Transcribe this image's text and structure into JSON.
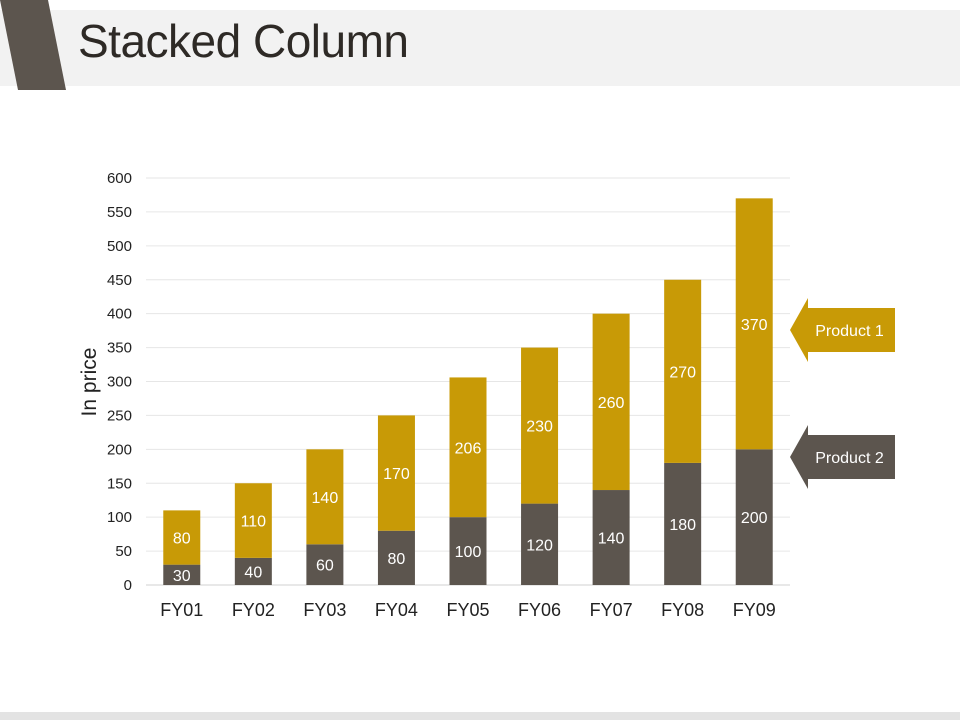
{
  "slide": {
    "title": "Stacked Column"
  },
  "colors": {
    "header_tab": "#5c554e",
    "product1": "#c89a06",
    "product2": "#5c554e",
    "gridline": "#e6e6e6"
  },
  "chart_data": {
    "type": "bar",
    "stacked": true,
    "categories": [
      "FY01",
      "FY02",
      "FY03",
      "FY04",
      "FY05",
      "FY06",
      "FY07",
      "FY08",
      "FY09"
    ],
    "series": [
      {
        "name": "Product 2",
        "values": [
          30,
          40,
          60,
          80,
          100,
          120,
          140,
          180,
          200
        ],
        "color": "#5c554e"
      },
      {
        "name": "Product 1",
        "values": [
          80,
          110,
          140,
          170,
          206,
          230,
          260,
          270,
          370
        ],
        "color": "#c89a06"
      }
    ],
    "title": "",
    "xlabel": "",
    "ylabel": "In price",
    "ylim": [
      0,
      600
    ],
    "yticks": [
      0,
      50,
      100,
      150,
      200,
      250,
      300,
      350,
      400,
      450,
      500,
      550,
      600
    ],
    "grid": true,
    "legend": "right, arrow callouts pointing at FY09 segments"
  }
}
